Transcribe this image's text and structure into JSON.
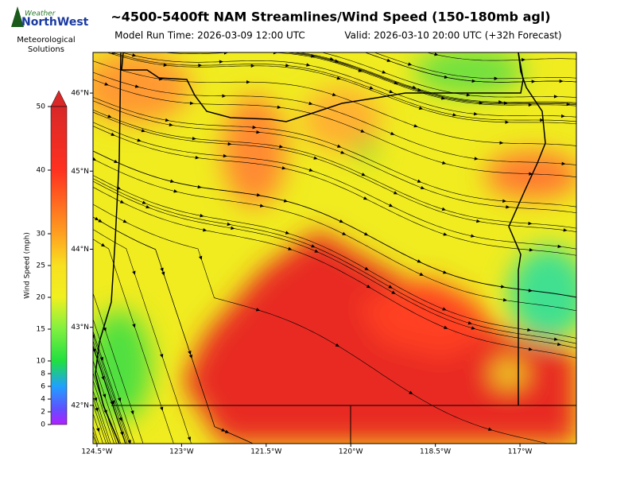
{
  "header": {
    "title": "~4500-5400ft NAM Streamlines/Wind Speed (150-180mb agl)",
    "model_run": "Model Run Time: 2026-03-09 12:00 UTC",
    "valid": "Valid: 2026-03-10 20:00 UTC  (+32h Forecast)"
  },
  "logo": {
    "brand_top": "Weather",
    "brand_main": "NorthWest",
    "line1": "Meteorological",
    "line2": "Solutions"
  },
  "colorbar": {
    "label": "Wind Speed (mph)",
    "lim": [
      0,
      50
    ],
    "ticks": [
      0,
      2,
      4,
      6,
      8,
      10,
      15,
      20,
      25,
      30,
      40,
      50
    ]
  },
  "map": {
    "lat_lim": [
      41.51,
      46.52
    ],
    "lon_lim": [
      -124.57,
      -116.0
    ],
    "lat_ticks": [
      {
        "value": 46,
        "label": "46°N"
      },
      {
        "value": 45,
        "label": "45°N"
      },
      {
        "value": 44,
        "label": "44°N"
      },
      {
        "value": 43,
        "label": "43°N"
      },
      {
        "value": 42,
        "label": "42°N"
      }
    ],
    "lon_ticks": [
      {
        "value": -124.5,
        "label": "124.5°W"
      },
      {
        "value": -123,
        "label": "123°W"
      },
      {
        "value": -121.5,
        "label": "121.5°W"
      },
      {
        "value": -120,
        "label": "120°W"
      },
      {
        "value": -118.5,
        "label": "118.5°W"
      },
      {
        "value": -117,
        "label": "117°W"
      }
    ]
  }
}
